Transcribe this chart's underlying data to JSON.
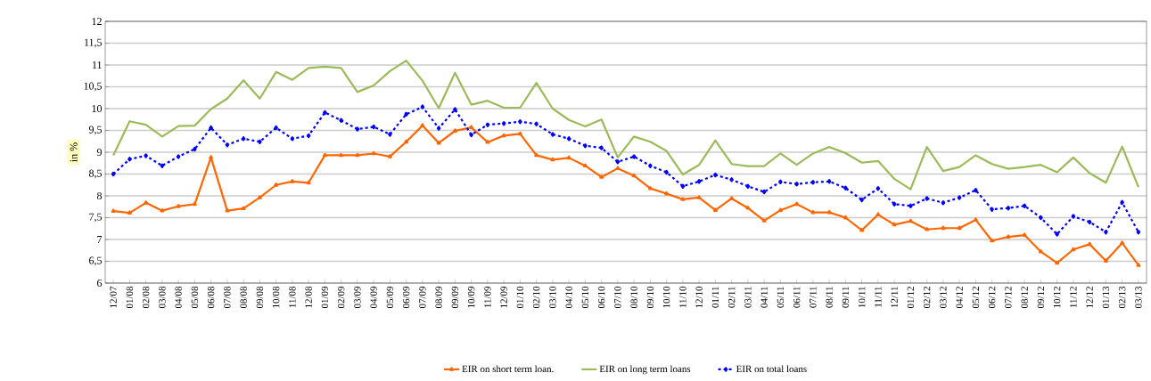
{
  "chart_data": {
    "type": "line",
    "ylabel": "in %",
    "categories": [
      "12/07",
      "01/08",
      "02/08",
      "03/08",
      "04/08",
      "05/08",
      "06/08",
      "07/08",
      "08/08",
      "09/08",
      "10/08",
      "11/08",
      "12/08",
      "01/09",
      "02/09",
      "03/09",
      "04/09",
      "05/09",
      "06/09",
      "07/09",
      "08/09",
      "09/09",
      "10/09",
      "11/09",
      "12/09",
      "01/10",
      "02/10",
      "03/10",
      "04/10",
      "05/10",
      "06/10",
      "07/10",
      "08/10",
      "09/10",
      "10/10",
      "11/10",
      "12/10",
      "01/11",
      "02/11",
      "03/11",
      "04/11",
      "05/11",
      "06/11",
      "07/11",
      "08/11",
      "09/11",
      "10/11",
      "11/11",
      "12/11",
      "01/12",
      "02/12",
      "03/12",
      "04/12",
      "05/12",
      "06/12",
      "07/12",
      "08/12",
      "09/12",
      "10/12",
      "11/12",
      "12/12",
      "01/13",
      "02/13",
      "03/13"
    ],
    "series": [
      {
        "name": "EIR on short term loan.",
        "color": "#ff6600",
        "marker": "triangle",
        "line_style": "solid",
        "values": [
          7.65,
          7.61,
          7.84,
          7.66,
          7.76,
          7.81,
          8.88,
          7.66,
          7.71,
          7.96,
          8.25,
          8.33,
          8.3,
          8.93,
          8.93,
          8.93,
          8.97,
          8.9,
          9.24,
          9.61,
          9.21,
          9.49,
          9.57,
          9.23,
          9.38,
          9.42,
          8.93,
          8.83,
          8.87,
          8.69,
          8.43,
          8.63,
          8.46,
          8.17,
          8.05,
          7.92,
          7.96,
          7.67,
          7.94,
          7.72,
          7.43,
          7.67,
          7.81,
          7.62,
          7.62,
          7.5,
          7.21,
          7.57,
          7.34,
          7.42,
          7.23,
          7.26,
          7.26,
          7.45,
          6.97,
          7.06,
          7.1,
          6.72,
          6.46,
          6.77,
          6.89,
          6.51,
          6.92,
          6.41
        ]
      },
      {
        "name": "EIR on long term loans",
        "color": "#9bbb59",
        "marker": "none",
        "line_style": "solid",
        "values": [
          8.93,
          9.71,
          9.63,
          9.36,
          9.6,
          9.61,
          9.99,
          10.23,
          10.65,
          10.23,
          10.84,
          10.66,
          10.93,
          10.96,
          10.93,
          10.38,
          10.53,
          10.86,
          11.1,
          10.64,
          10.01,
          10.82,
          10.09,
          10.18,
          10.02,
          10.02,
          10.59,
          10.0,
          9.74,
          9.59,
          9.75,
          8.88,
          9.36,
          9.24,
          9.03,
          8.49,
          8.71,
          9.27,
          8.73,
          8.68,
          8.68,
          8.97,
          8.71,
          8.97,
          9.12,
          8.98,
          8.76,
          8.8,
          8.39,
          8.15,
          9.12,
          8.57,
          8.66,
          8.93,
          8.73,
          8.62,
          8.66,
          8.71,
          8.54,
          8.88,
          8.52,
          8.3,
          9.13,
          8.2
        ]
      },
      {
        "name": "EIR on total loans",
        "color": "#0000ff",
        "marker": "diamond",
        "line_style": "dashed",
        "values": [
          8.5,
          8.84,
          8.92,
          8.69,
          8.9,
          9.07,
          9.56,
          9.17,
          9.31,
          9.24,
          9.56,
          9.31,
          9.38,
          9.91,
          9.73,
          9.53,
          9.58,
          9.41,
          9.87,
          10.04,
          9.55,
          9.98,
          9.4,
          9.63,
          9.66,
          9.7,
          9.65,
          9.41,
          9.31,
          9.15,
          9.1,
          8.78,
          8.9,
          8.69,
          8.54,
          8.22,
          8.33,
          8.48,
          8.37,
          8.22,
          8.09,
          8.32,
          8.27,
          8.31,
          8.33,
          8.18,
          7.91,
          8.17,
          7.81,
          7.77,
          7.94,
          7.84,
          7.96,
          8.13,
          7.69,
          7.72,
          7.77,
          7.5,
          7.12,
          7.53,
          7.4,
          7.17,
          7.85,
          7.17
        ]
      }
    ],
    "ylim": [
      6,
      12
    ],
    "yticks": [
      6,
      {
        "value": 6.5,
        "label": "6,5"
      },
      7,
      {
        "value": 7.5,
        "label": "7,5"
      },
      8,
      {
        "value": 8.5,
        "label": "8,5"
      },
      9,
      {
        "value": 9.5,
        "label": "9,5"
      },
      10,
      {
        "value": 10.5,
        "label": "10,5"
      },
      11,
      {
        "value": 11.5,
        "label": "11,5"
      },
      12
    ],
    "grid": "y",
    "legend": "bottom"
  }
}
